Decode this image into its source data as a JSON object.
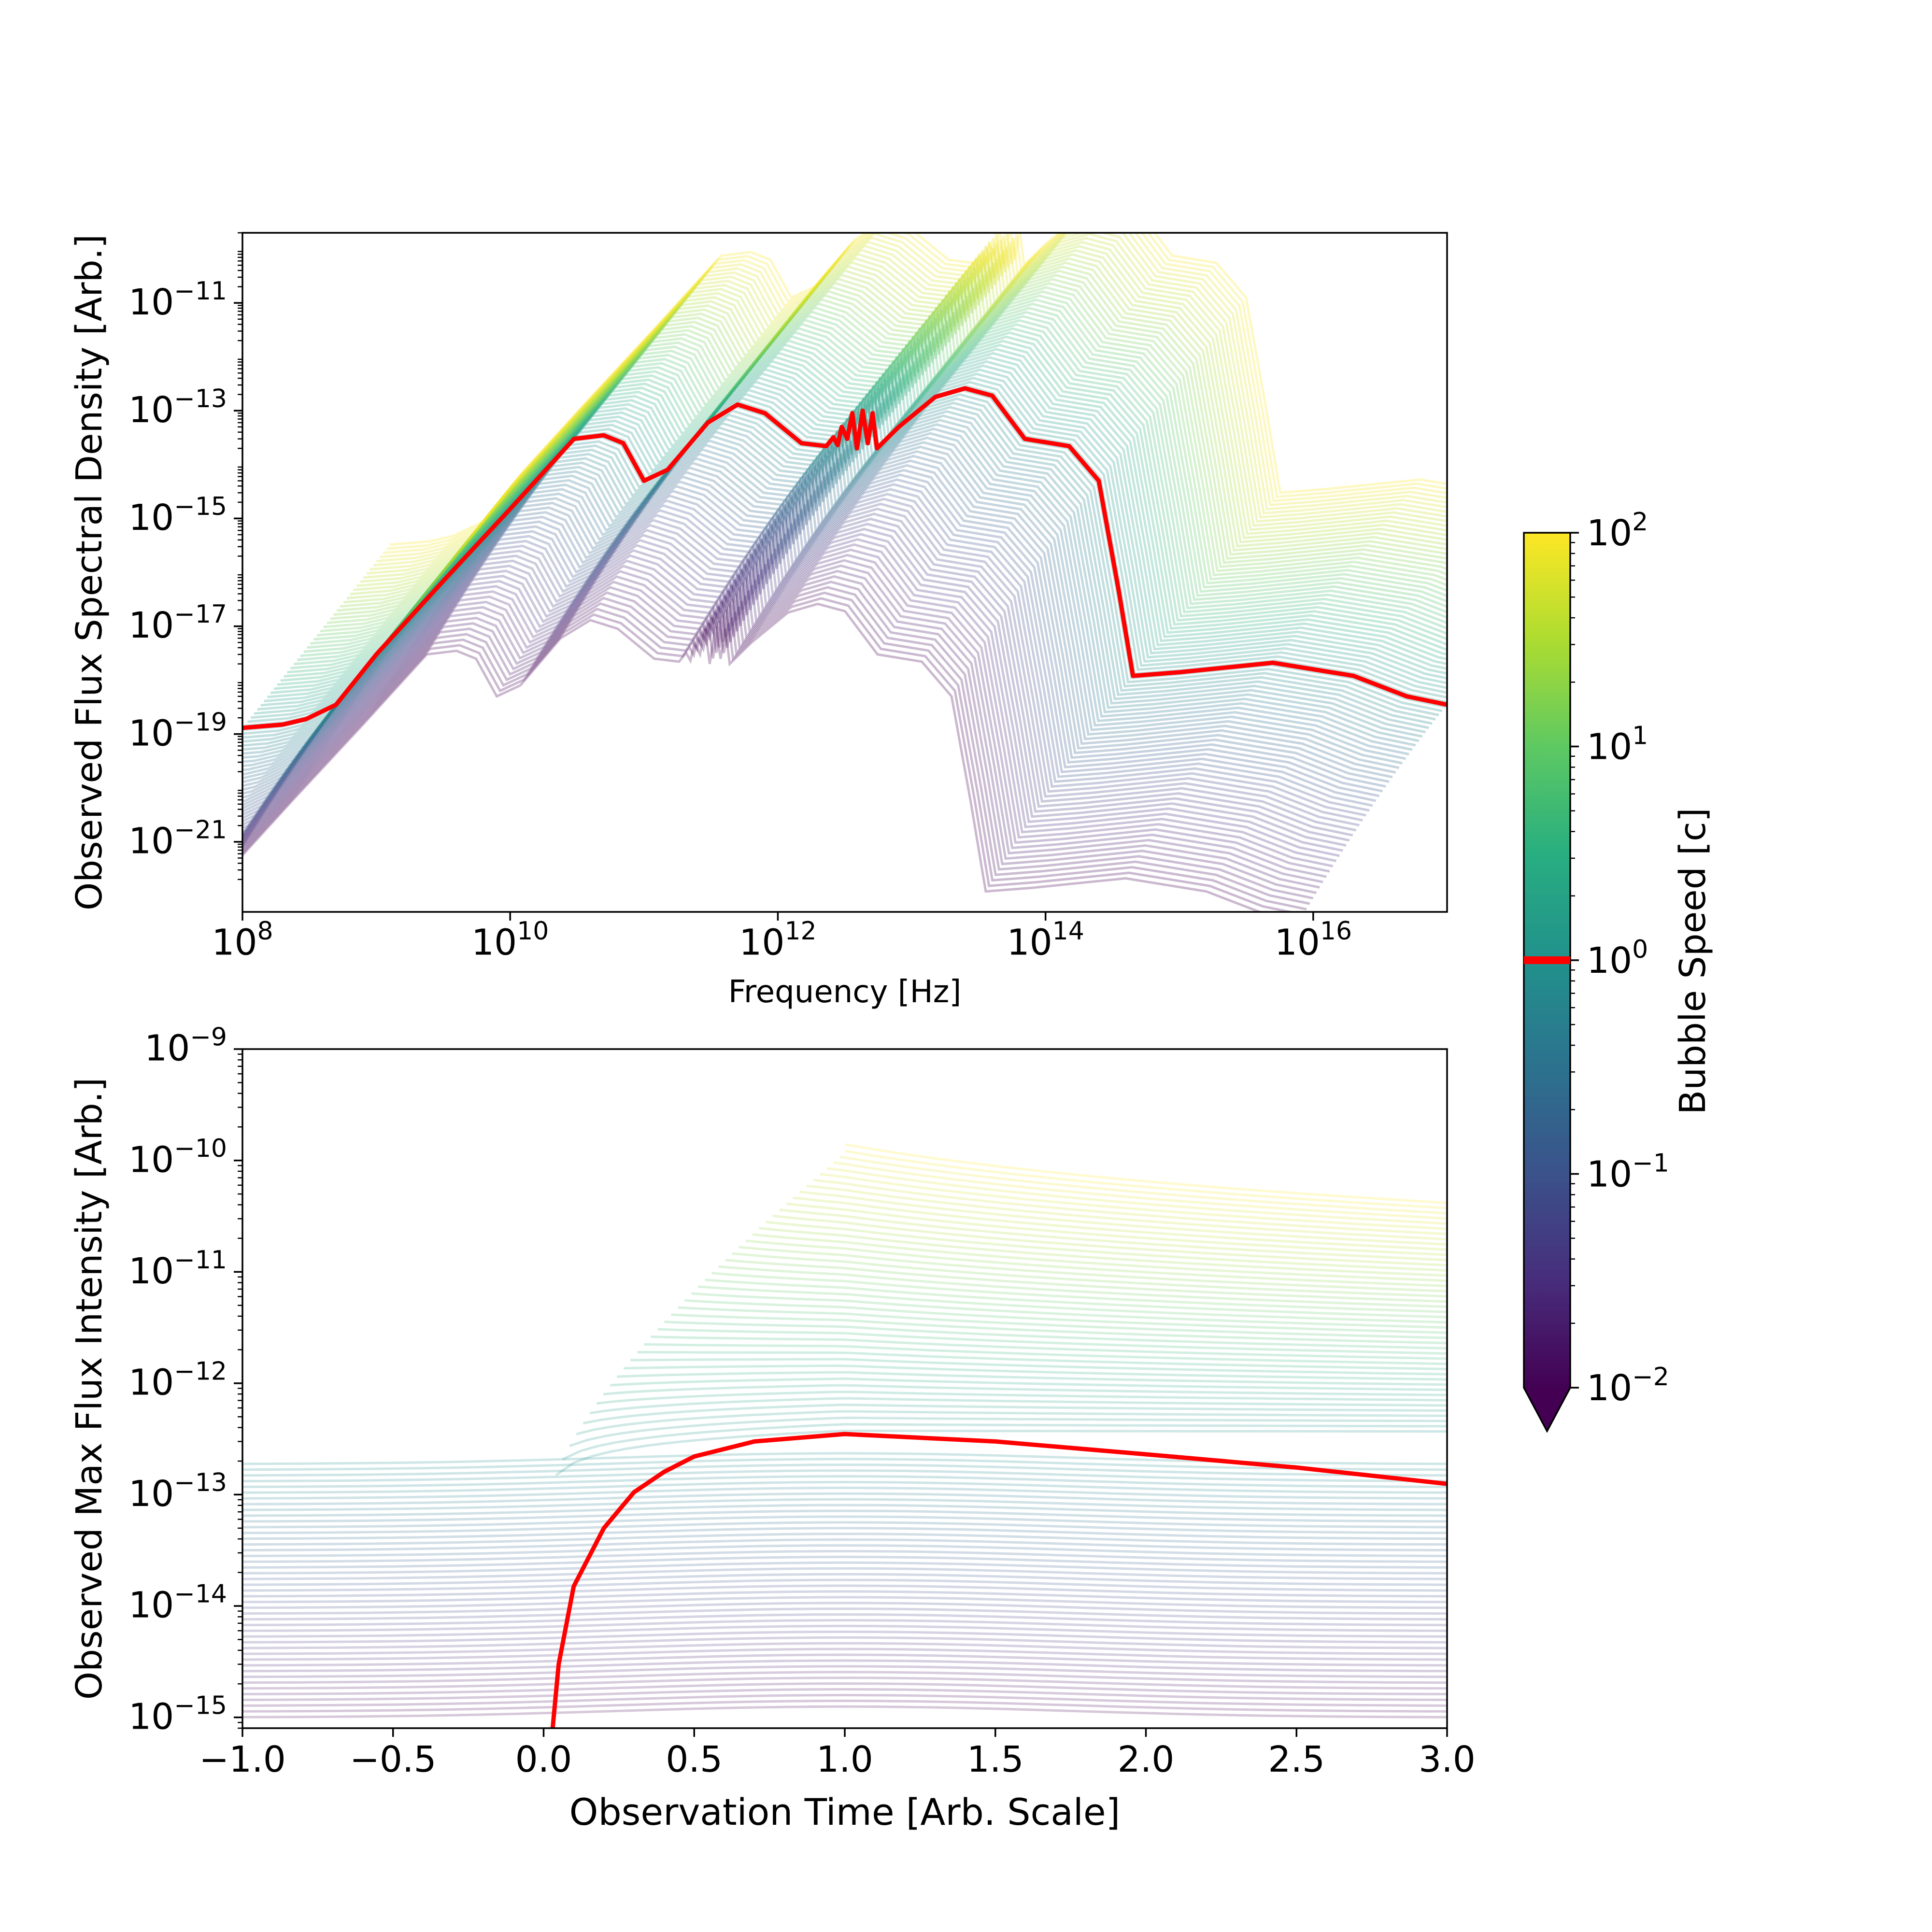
{
  "chart_data": [
    {
      "type": "line",
      "panel": "top",
      "xlabel": "Frequency [Hz]",
      "ylabel": "Observed Flux Spectral Density [Arb.]",
      "xscale": "log",
      "yscale": "log",
      "xlim": [
        100000000.0,
        1e+17
      ],
      "ylim": [
        5e-23,
        2e-10
      ],
      "x_ticks": [
        {
          "exp": "8",
          "v": 100000000.0
        },
        {
          "exp": "10",
          "v": 10000000000.0
        },
        {
          "exp": "12",
          "v": 1000000000000.0
        },
        {
          "exp": "14",
          "v": 100000000000000.0
        },
        {
          "exp": "16",
          "v": 1e+16
        }
      ],
      "y_ticks": [
        {
          "exp": "−21",
          "v": 1e-21
        },
        {
          "exp": "−19",
          "v": 1e-19
        },
        {
          "exp": "−17",
          "v": 1e-17
        },
        {
          "exp": "−15",
          "v": 1e-15
        },
        {
          "exp": "−13",
          "v": 1e-13
        },
        {
          "exp": "−11",
          "v": 1e-11
        }
      ],
      "grid": false,
      "family_note_speed_range_c": [
        0.01,
        100
      ],
      "highlighted_series": {
        "speed_c": 1,
        "color": "#ff0000",
        "points": [
          [
            100000000.0,
            1.3e-19
          ],
          [
            200000000.0,
            1.5e-19
          ],
          [
            300000000.0,
            1.9e-19
          ],
          [
            500000000.0,
            3.5e-19
          ],
          [
            1000000000.0,
            3e-18
          ],
          [
            3000000000.0,
            6e-17
          ],
          [
            10000000000.0,
            1.5e-15
          ],
          [
            30000000000.0,
            3e-14
          ],
          [
            50000000000.0,
            3.5e-14
          ],
          [
            70000000000.0,
            2.5e-14
          ],
          [
            100000000000.0,
            5e-15
          ],
          [
            150000000000.0,
            8e-15
          ],
          [
            300000000000.0,
            6e-14
          ],
          [
            500000000000.0,
            1.3e-13
          ],
          [
            800000000000.0,
            9e-14
          ],
          [
            1500000000000.0,
            2.5e-14
          ],
          [
            2300000000000.0,
            2.2e-14
          ],
          [
            2600000000000.0,
            3.2e-14
          ],
          [
            2800000000000.0,
            2.3e-14
          ],
          [
            3000000000000.0,
            5e-14
          ],
          [
            3300000000000.0,
            3e-14
          ],
          [
            3600000000000.0,
            9e-14
          ],
          [
            3900000000000.0,
            2e-14
          ],
          [
            4300000000000.0,
            1e-13
          ],
          [
            4700000000000.0,
            2.5e-14
          ],
          [
            5100000000000.0,
            9e-14
          ],
          [
            5500000000000.0,
            2e-14
          ],
          [
            8000000000000.0,
            5e-14
          ],
          [
            15000000000000.0,
            1.8e-13
          ],
          [
            25000000000000.0,
            2.6e-13
          ],
          [
            40000000000000.0,
            1.9e-13
          ],
          [
            70000000000000.0,
            3e-14
          ],
          [
            150000000000000.0,
            2.2e-14
          ],
          [
            250000000000000.0,
            5e-15
          ],
          [
            350000000000000.0,
            5e-17
          ],
          [
            450000000000000.0,
            1.2e-18
          ],
          [
            1000000000000000.0,
            1.4e-18
          ],
          [
            5000000000000000.0,
            2.1e-18
          ],
          [
            2e+16,
            1.2e-18
          ],
          [
            5e+16,
            5e-19
          ],
          [
            1e+17,
            3.5e-19
          ]
        ]
      }
    },
    {
      "type": "line",
      "panel": "bottom",
      "xlabel": "Observation Time [Arb. Scale]",
      "ylabel": "Observed Max Flux Intensity [Arb.]",
      "xscale": "linear",
      "yscale": "log",
      "xlim": [
        -1.0,
        3.0
      ],
      "ylim": [
        8e-16,
        1e-09
      ],
      "x_ticks": [
        {
          "label": "−1.0",
          "v": -1.0
        },
        {
          "label": "−0.5",
          "v": -0.5
        },
        {
          "label": "0.0",
          "v": 0.0
        },
        {
          "label": "0.5",
          "v": 0.5
        },
        {
          "label": "1.0",
          "v": 1.0
        },
        {
          "label": "1.5",
          "v": 1.5
        },
        {
          "label": "2.0",
          "v": 2.0
        },
        {
          "label": "2.5",
          "v": 2.5
        },
        {
          "label": "3.0",
          "v": 3.0
        }
      ],
      "y_ticks": [
        {
          "exp": "−15",
          "v": 1e-15
        },
        {
          "exp": "−14",
          "v": 1e-14
        },
        {
          "exp": "−13",
          "v": 1e-13
        },
        {
          "exp": "−12",
          "v": 1e-12
        },
        {
          "exp": "−11",
          "v": 1e-11
        },
        {
          "exp": "−10",
          "v": 1e-10
        },
        {
          "exp": "−9",
          "v": 1e-09
        }
      ],
      "grid": false,
      "highlighted_series": {
        "speed_c": 1,
        "color": "#ff0000",
        "points": [
          [
            0.03,
            8e-16
          ],
          [
            0.05,
            3e-15
          ],
          [
            0.1,
            1.5e-14
          ],
          [
            0.2,
            5e-14
          ],
          [
            0.3,
            1.05e-13
          ],
          [
            0.4,
            1.6e-13
          ],
          [
            0.5,
            2.2e-13
          ],
          [
            0.7,
            3e-13
          ],
          [
            1.0,
            3.5e-13
          ],
          [
            1.5,
            3e-13
          ],
          [
            2.0,
            2.3e-13
          ],
          [
            2.5,
            1.75e-13
          ],
          [
            3.0,
            1.25e-13
          ]
        ]
      }
    }
  ],
  "colorbar": {
    "label": "Bubble Speed [c]",
    "scale": "log",
    "range": [
      0.01,
      100
    ],
    "ticks": [
      {
        "exp": "2",
        "v": 100
      },
      {
        "exp": "1",
        "v": 10
      },
      {
        "exp": "0",
        "v": 1
      },
      {
        "exp": "−1",
        "v": 0.1
      },
      {
        "exp": "−2",
        "v": 0.01
      }
    ],
    "colormap": "viridis",
    "extend": "min",
    "highlight_value": 1,
    "highlight_color": "#ff0000"
  }
}
